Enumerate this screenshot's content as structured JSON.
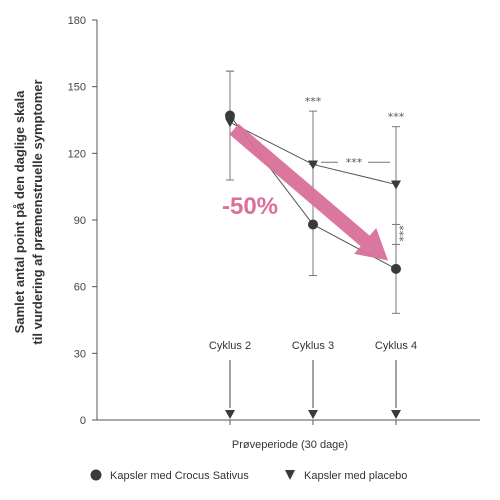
{
  "chart_data": {
    "type": "line",
    "xlabel": "Prøveperiode (30 dage)",
    "ylabel_lines": [
      "Samlet antal point på den daglige skala",
      "til vurdering af præmenstruelle symptomer"
    ],
    "ylim": [
      0,
      180
    ],
    "yticks": [
      0,
      30,
      60,
      90,
      120,
      150,
      180
    ],
    "categories": [
      "Cyklus 2",
      "Cyklus 3",
      "Cyklus 4"
    ],
    "series": [
      {
        "name": "Kapsler med Crocus Sativus",
        "marker": "circle",
        "values": [
          137,
          88,
          68
        ],
        "error_high": [
          157,
          115,
          88
        ],
        "error_low": [
          108,
          65,
          48
        ]
      },
      {
        "name": "Kapsler med placebo",
        "marker": "triangle",
        "values": [
          134,
          115,
          106
        ],
        "error_high": [
          157,
          139,
          132
        ],
        "error_low": [
          108,
          88,
          79
        ]
      }
    ],
    "significance": [
      {
        "at": "Cyklus 3",
        "text": "***"
      },
      {
        "at": "Cyklus 4",
        "text": "***"
      },
      {
        "between": [
          "Cyklus 3",
          "Cyklus 4"
        ],
        "text": "***"
      },
      {
        "at": "Cyklus 4",
        "vertical": true,
        "text": "***"
      }
    ],
    "highlight": {
      "label": "-50%",
      "color": "#d9709a",
      "from_value": 130,
      "to_value": 70
    },
    "axis_markers": {
      "marker": "triangle"
    },
    "legend_position": "bottom"
  }
}
